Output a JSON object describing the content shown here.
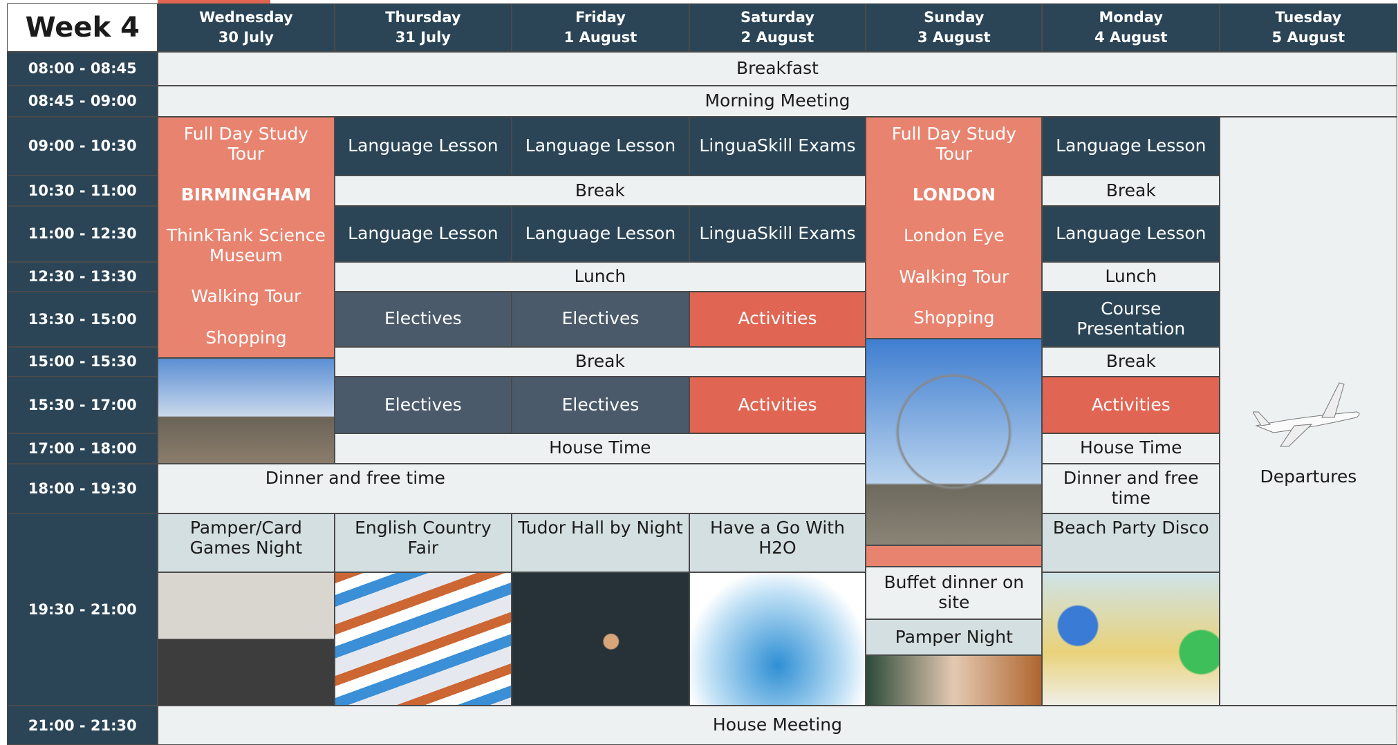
{
  "header": {
    "title": "Week 4"
  },
  "days": [
    {
      "name": "Wednesday",
      "date": "30 July"
    },
    {
      "name": "Thursday",
      "date": "31 July"
    },
    {
      "name": "Friday",
      "date": "1 August"
    },
    {
      "name": "Saturday",
      "date": "2 August"
    },
    {
      "name": "Sunday",
      "date": "3 August"
    },
    {
      "name": "Monday",
      "date": "4 August"
    },
    {
      "name": "Tuesday",
      "date": "5 August"
    }
  ],
  "times": [
    "08:00 - 08:45",
    "08:45 - 09:00",
    "09:00 - 10:30",
    "10:30 - 11:00",
    "11:00 - 12:30",
    "12:30 - 13:30",
    "13:30 - 15:00",
    "15:00 - 15:30",
    "15:30 - 17:00",
    "17:00 - 18:00",
    "18:00 - 19:30",
    "19:30 - 21:00",
    "21:00 - 21:30"
  ],
  "cells": [
    {
      "lines": [
        "Breakfast"
      ]
    },
    {
      "lines": [
        "Morning Meeting"
      ]
    },
    {
      "lines": [
        "Full Day Study Tour",
        "BIRMINGHAM",
        "ThinkTank Science Museum",
        "Walking Tour",
        "Shopping"
      ]
    },
    {
      "lines": [
        "Language Lesson"
      ]
    },
    {
      "lines": [
        "Language Lesson"
      ]
    },
    {
      "lines": [
        "LinguaSkill Exams"
      ]
    },
    {
      "lines": [
        "Full Day Study Tour",
        "LONDON",
        "London Eye",
        "Walking Tour",
        "Shopping"
      ]
    },
    {
      "lines": [
        "Language Lesson"
      ]
    },
    {
      "lines": [
        "Departures"
      ]
    },
    {
      "lines": [
        "Break"
      ]
    },
    {
      "lines": [
        "Break"
      ]
    },
    {
      "lines": [
        "Language Lesson"
      ]
    },
    {
      "lines": [
        "Language Lesson"
      ]
    },
    {
      "lines": [
        "LinguaSkill Exams"
      ]
    },
    {
      "lines": [
        "Language Lesson"
      ]
    },
    {
      "lines": [
        "Lunch"
      ]
    },
    {
      "lines": [
        "Lunch"
      ]
    },
    {
      "lines": [
        "Electives"
      ]
    },
    {
      "lines": [
        "Electives"
      ]
    },
    {
      "lines": [
        "Activities"
      ]
    },
    {
      "lines": [
        "Course Presentation"
      ]
    },
    {
      "lines": [
        "Break"
      ]
    },
    {
      "lines": [
        "Break"
      ]
    },
    {
      "lines": [
        "Electives"
      ]
    },
    {
      "lines": [
        "Electives"
      ]
    },
    {
      "lines": [
        "Activities"
      ]
    },
    {
      "lines": [
        "Activities"
      ]
    },
    {
      "lines": [
        "House Time"
      ]
    },
    {
      "lines": [
        "House Time"
      ]
    },
    {
      "lines": [
        "Dinner and free time"
      ]
    },
    {
      "lines": [
        "Dinner and free time"
      ]
    },
    {
      "lines": [
        "Pamper/Card Games Night"
      ]
    },
    {
      "lines": [
        "English Country Fair"
      ]
    },
    {
      "lines": [
        "Tudor Hall by Night"
      ]
    },
    {
      "lines": [
        "Have a Go With H2O"
      ]
    },
    {
      "lines": [
        "Buffet dinner on site"
      ]
    },
    {
      "lines": [
        "Pamper Night"
      ]
    },
    {
      "lines": [
        "Beach Party Disco"
      ]
    },
    {
      "lines": [
        "House Meeting"
      ]
    }
  ]
}
